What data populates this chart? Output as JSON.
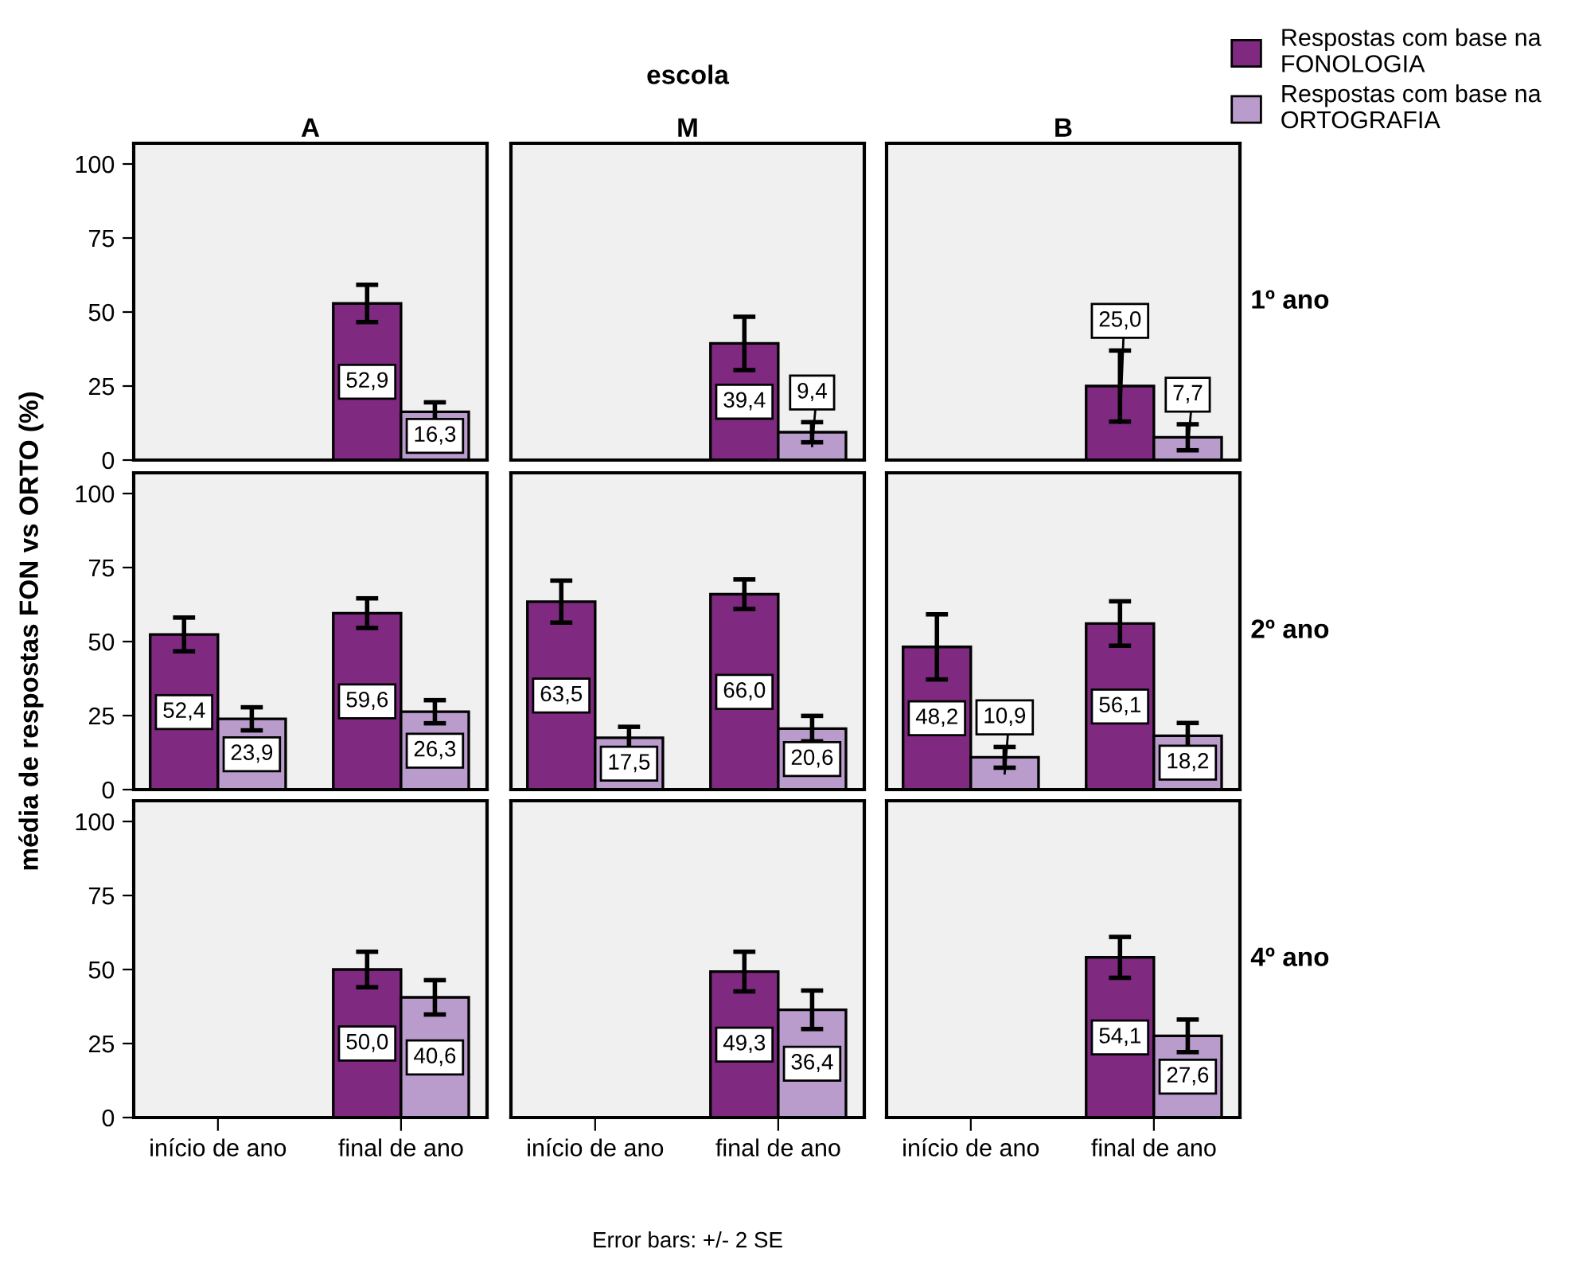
{
  "chart_data": [
    {
      "type": "bar",
      "title": "A",
      "categories": [
        "início de ano",
        "final de ano"
      ],
      "series": [
        {
          "name": "Respostas com base na\nFONOLOGIA",
          "color": "#7f2a80",
          "values": [
            null,
            52.9
          ],
          "errors": [
            null,
            6.3
          ],
          "value_labels": [
            null,
            "52,9"
          ]
        },
        {
          "name": "Respostas com base na\nORTOGRAFIA",
          "color": "#b99ccc",
          "values": [
            null,
            16.3
          ],
          "errors": [
            null,
            3.2
          ],
          "value_labels": [
            null,
            "16,3"
          ]
        }
      ],
      "ylim": [
        0,
        107
      ],
      "yticks": [
        0,
        25,
        50,
        75,
        100
      ],
      "tick_labels": "y",
      "legend": "top right",
      "grid": false
    },
    {
      "type": "bar",
      "title": "M",
      "annotations": [
        "escola"
      ],
      "categories": [
        "início de ano",
        "final de ano"
      ],
      "series": [
        {
          "color": "#7f2a80",
          "values": [
            null,
            39.4
          ],
          "errors": [
            null,
            9.0
          ],
          "value_labels": [
            null,
            "39,4"
          ]
        },
        {
          "color": "#b99ccc",
          "values": [
            null,
            9.4
          ],
          "errors": [
            null,
            3.4
          ],
          "value_labels": [
            null,
            "9,4"
          ]
        }
      ],
      "ylim": [
        0,
        107
      ],
      "yticks": [
        0,
        25,
        50,
        75,
        100
      ],
      "tick_labels": false,
      "grid": false
    },
    {
      "type": "bar",
      "title": "B",
      "y2label": "1º ano",
      "categories": [
        "início de ano",
        "final de ano"
      ],
      "series": [
        {
          "color": "#7f2a80",
          "values": [
            null,
            25.0
          ],
          "errors": [
            null,
            12.0
          ],
          "value_labels": [
            null,
            "25,0"
          ]
        },
        {
          "color": "#b99ccc",
          "values": [
            null,
            7.7
          ],
          "errors": [
            null,
            4.4
          ],
          "value_labels": [
            null,
            "7,7"
          ]
        }
      ],
      "ylim": [
        0,
        107
      ],
      "yticks": [
        0,
        25,
        50,
        75,
        100
      ],
      "tick_labels": false,
      "grid": false
    },
    {
      "type": "bar",
      "ylabel": "média de respostas FON vs ORTO (%)",
      "categories": [
        "início de ano",
        "final de ano"
      ],
      "series": [
        {
          "color": "#7f2a80",
          "values": [
            52.4,
            59.6
          ],
          "errors": [
            5.7,
            5.0
          ],
          "value_labels": [
            "52,4",
            "59,6"
          ]
        },
        {
          "color": "#b99ccc",
          "values": [
            23.9,
            26.3
          ],
          "errors": [
            3.9,
            3.9
          ],
          "value_labels": [
            "23,9",
            "26,3"
          ]
        }
      ],
      "ylim": [
        0,
        107
      ],
      "yticks": [
        0,
        25,
        50,
        75,
        100
      ],
      "tick_labels": "y",
      "grid": false
    },
    {
      "type": "bar",
      "categories": [
        "início de ano",
        "final de ano"
      ],
      "series": [
        {
          "color": "#7f2a80",
          "values": [
            63.5,
            66.0
          ],
          "errors": [
            7.1,
            5.0
          ],
          "value_labels": [
            "63,5",
            "66,0"
          ]
        },
        {
          "color": "#b99ccc",
          "values": [
            17.5,
            20.6
          ],
          "errors": [
            3.7,
            4.3
          ],
          "value_labels": [
            "17,5",
            "20,6"
          ]
        }
      ],
      "ylim": [
        0,
        107
      ],
      "yticks": [
        0,
        25,
        50,
        75,
        100
      ],
      "tick_labels": false,
      "grid": false
    },
    {
      "type": "bar",
      "y2label": "2º ano",
      "categories": [
        "início de ano",
        "final de ano"
      ],
      "series": [
        {
          "color": "#7f2a80",
          "values": [
            48.2,
            56.1
          ],
          "errors": [
            11.0,
            7.5
          ],
          "value_labels": [
            "48,2",
            "56,1"
          ]
        },
        {
          "color": "#b99ccc",
          "values": [
            10.9,
            18.2
          ],
          "errors": [
            3.5,
            4.3
          ],
          "value_labels": [
            "10,9",
            "18,2"
          ]
        }
      ],
      "ylim": [
        0,
        107
      ],
      "yticks": [
        0,
        25,
        50,
        75,
        100
      ],
      "tick_labels": false,
      "grid": false
    },
    {
      "type": "bar",
      "categories": [
        "início de ano",
        "final de ano"
      ],
      "series": [
        {
          "color": "#7f2a80",
          "values": [
            null,
            50.0
          ],
          "errors": [
            null,
            6.0
          ],
          "value_labels": [
            null,
            "50,0"
          ]
        },
        {
          "color": "#b99ccc",
          "values": [
            null,
            40.6
          ],
          "errors": [
            null,
            5.8
          ],
          "value_labels": [
            null,
            "40,6"
          ]
        }
      ],
      "ylim": [
        0,
        107
      ],
      "yticks": [
        0,
        25,
        50,
        75,
        100
      ],
      "grid": false
    },
    {
      "type": "bar",
      "annotations": [
        "Error bars: +/- 2 SE"
      ],
      "categories": [
        "início de ano",
        "final de ano"
      ],
      "series": [
        {
          "color": "#7f2a80",
          "values": [
            null,
            49.3
          ],
          "errors": [
            null,
            6.7
          ],
          "value_labels": [
            null,
            "49,3"
          ]
        },
        {
          "color": "#b99ccc",
          "values": [
            null,
            36.4
          ],
          "errors": [
            null,
            6.5
          ],
          "value_labels": [
            null,
            "36,4"
          ]
        }
      ],
      "ylim": [
        0,
        107
      ],
      "yticks": [
        0,
        25,
        50,
        75,
        100
      ],
      "tick_labels": "x",
      "grid": false
    },
    {
      "type": "bar",
      "y2label": "4º ano",
      "categories": [
        "início de ano",
        "final de ano"
      ],
      "series": [
        {
          "color": "#7f2a80",
          "values": [
            null,
            54.1
          ],
          "errors": [
            null,
            6.9
          ],
          "value_labels": [
            null,
            "54,1"
          ]
        },
        {
          "color": "#b99ccc",
          "values": [
            null,
            27.6
          ],
          "errors": [
            null,
            5.5
          ],
          "value_labels": [
            null,
            "27,6"
          ]
        }
      ],
      "ylim": [
        0,
        107
      ],
      "yticks": [
        0,
        25,
        50,
        75,
        100
      ],
      "tick_labels": "x",
      "grid": false
    }
  ]
}
